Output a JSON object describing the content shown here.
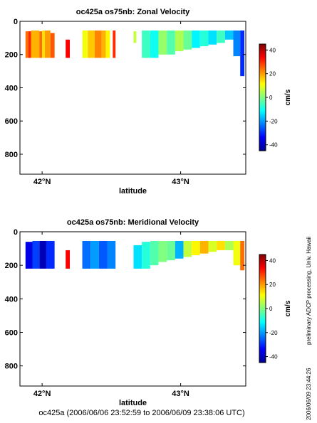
{
  "footer_caption": "oc425a (2006/06/06 23:52:59 to 2006/06/09 23:38:06 UTC)",
  "side_note": "preliminary ADCP processing,  Univ. Hawaii",
  "side_stamp": "2006/06/09 23:44:26",
  "chart_data": [
    {
      "type": "heatmap",
      "title": "oc425a os75nb: Zonal Velocity",
      "xlabel": "latitude",
      "ylabel": "",
      "x_ticks": [
        {
          "value": 42.0,
          "label": "42°N"
        },
        {
          "value": 43.0,
          "label": "43°N"
        }
      ],
      "y_ticks": [
        0,
        200,
        400,
        600,
        800
      ],
      "xlim": [
        41.84,
        43.47
      ],
      "ylim": [
        920,
        0
      ],
      "colorbar": {
        "label": "cm/s",
        "range": [
          -45,
          45
        ],
        "ticks": [
          -40,
          -20,
          0,
          20,
          40
        ]
      },
      "segments": [
        {
          "lat": [
            41.88,
            41.9
          ],
          "depth": [
            60,
            220
          ],
          "value": 24
        },
        {
          "lat": [
            41.9,
            41.92
          ],
          "depth": [
            60,
            220
          ],
          "value": 30
        },
        {
          "lat": [
            41.92,
            41.98
          ],
          "depth": [
            55,
            220
          ],
          "value": 18
        },
        {
          "lat": [
            41.98,
            42.0
          ],
          "depth": [
            60,
            220
          ],
          "value": 24
        },
        {
          "lat": [
            42.0,
            42.02
          ],
          "depth": [
            55,
            220
          ],
          "value": 14
        },
        {
          "lat": [
            42.02,
            42.06
          ],
          "depth": [
            55,
            220
          ],
          "value": 20
        },
        {
          "lat": [
            42.06,
            42.09
          ],
          "depth": [
            70,
            220
          ],
          "value": 26
        },
        {
          "lat": [
            42.17,
            42.2
          ],
          "depth": [
            110,
            220
          ],
          "value": 34
        },
        {
          "lat": [
            42.29,
            42.33
          ],
          "depth": [
            55,
            220
          ],
          "value": 10
        },
        {
          "lat": [
            42.33,
            42.38
          ],
          "depth": [
            55,
            220
          ],
          "value": 16
        },
        {
          "lat": [
            42.38,
            42.43
          ],
          "depth": [
            55,
            220
          ],
          "value": 22
        },
        {
          "lat": [
            42.43,
            42.46
          ],
          "depth": [
            55,
            220
          ],
          "value": 18
        },
        {
          "lat": [
            42.46,
            42.49
          ],
          "depth": [
            55,
            220
          ],
          "value": 12
        },
        {
          "lat": [
            42.51,
            42.53
          ],
          "depth": [
            55,
            220
          ],
          "value": 30
        },
        {
          "lat": [
            42.66,
            42.68
          ],
          "depth": [
            60,
            130
          ],
          "value": 6
        },
        {
          "lat": [
            42.72,
            42.78
          ],
          "depth": [
            55,
            220
          ],
          "value": -6
        },
        {
          "lat": [
            42.78,
            42.84
          ],
          "depth": [
            55,
            220
          ],
          "value": -10
        },
        {
          "lat": [
            42.84,
            42.9
          ],
          "depth": [
            55,
            200
          ],
          "value": 2
        },
        {
          "lat": [
            42.9,
            42.96
          ],
          "depth": [
            55,
            200
          ],
          "value": -4
        },
        {
          "lat": [
            42.96,
            43.02
          ],
          "depth": [
            55,
            180
          ],
          "value": 4
        },
        {
          "lat": [
            43.02,
            43.08
          ],
          "depth": [
            55,
            170
          ],
          "value": -2
        },
        {
          "lat": [
            43.08,
            43.14
          ],
          "depth": [
            55,
            160
          ],
          "value": -12
        },
        {
          "lat": [
            43.14,
            43.2
          ],
          "depth": [
            55,
            150
          ],
          "value": -8
        },
        {
          "lat": [
            43.2,
            43.26
          ],
          "depth": [
            55,
            140
          ],
          "value": -14
        },
        {
          "lat": [
            43.26,
            43.32
          ],
          "depth": [
            55,
            130
          ],
          "value": -6
        },
        {
          "lat": [
            43.32,
            43.38
          ],
          "depth": [
            55,
            110
          ],
          "value": -16
        },
        {
          "lat": [
            43.38,
            43.43
          ],
          "depth": [
            55,
            210
          ],
          "value": -22
        },
        {
          "lat": [
            43.43,
            43.46
          ],
          "depth": [
            55,
            330
          ],
          "value": -30
        }
      ]
    },
    {
      "type": "heatmap",
      "title": "oc425a os75nb: Meridional Velocity",
      "xlabel": "latitude",
      "ylabel": "",
      "x_ticks": [
        {
          "value": 42.0,
          "label": "42°N"
        },
        {
          "value": 43.0,
          "label": "43°N"
        }
      ],
      "y_ticks": [
        0,
        200,
        400,
        600,
        800
      ],
      "xlim": [
        41.84,
        43.47
      ],
      "ylim": [
        920,
        0
      ],
      "colorbar": {
        "label": "cm/s",
        "range": [
          -45,
          45
        ],
        "ticks": [
          -40,
          -20,
          0,
          20,
          40
        ]
      },
      "segments": [
        {
          "lat": [
            41.88,
            41.93
          ],
          "depth": [
            60,
            220
          ],
          "value": -36
        },
        {
          "lat": [
            41.93,
            41.98
          ],
          "depth": [
            55,
            220
          ],
          "value": -28
        },
        {
          "lat": [
            41.98,
            42.03
          ],
          "depth": [
            55,
            220
          ],
          "value": -40
        },
        {
          "lat": [
            42.03,
            42.09
          ],
          "depth": [
            55,
            220
          ],
          "value": -30
        },
        {
          "lat": [
            42.17,
            42.2
          ],
          "depth": [
            110,
            220
          ],
          "value": 34
        },
        {
          "lat": [
            42.29,
            42.35
          ],
          "depth": [
            55,
            220
          ],
          "value": -24
        },
        {
          "lat": [
            42.35,
            42.41
          ],
          "depth": [
            55,
            220
          ],
          "value": -20
        },
        {
          "lat": [
            42.41,
            42.47
          ],
          "depth": [
            55,
            220
          ],
          "value": -26
        },
        {
          "lat": [
            42.47,
            42.53
          ],
          "depth": [
            55,
            220
          ],
          "value": -22
        },
        {
          "lat": [
            42.66,
            42.72
          ],
          "depth": [
            80,
            220
          ],
          "value": -14
        },
        {
          "lat": [
            42.72,
            42.78
          ],
          "depth": [
            60,
            220
          ],
          "value": -8
        },
        {
          "lat": [
            42.78,
            42.84
          ],
          "depth": [
            55,
            200
          ],
          "value": -4
        },
        {
          "lat": [
            42.84,
            42.9
          ],
          "depth": [
            55,
            180
          ],
          "value": 0
        },
        {
          "lat": [
            42.9,
            42.96
          ],
          "depth": [
            55,
            170
          ],
          "value": -2
        },
        {
          "lat": [
            42.96,
            43.02
          ],
          "depth": [
            55,
            160
          ],
          "value": -18
        },
        {
          "lat": [
            43.02,
            43.08
          ],
          "depth": [
            55,
            150
          ],
          "value": 6
        },
        {
          "lat": [
            43.08,
            43.14
          ],
          "depth": [
            55,
            140
          ],
          "value": 12
        },
        {
          "lat": [
            43.14,
            43.2
          ],
          "depth": [
            55,
            130
          ],
          "value": 18
        },
        {
          "lat": [
            43.2,
            43.26
          ],
          "depth": [
            55,
            120
          ],
          "value": 8
        },
        {
          "lat": [
            43.26,
            43.32
          ],
          "depth": [
            55,
            110
          ],
          "value": 14
        },
        {
          "lat": [
            43.32,
            43.38
          ],
          "depth": [
            55,
            110
          ],
          "value": 4
        },
        {
          "lat": [
            43.38,
            43.43
          ],
          "depth": [
            55,
            200
          ],
          "value": 10
        },
        {
          "lat": [
            43.43,
            43.46
          ],
          "depth": [
            55,
            230
          ],
          "value": 24
        }
      ]
    }
  ]
}
